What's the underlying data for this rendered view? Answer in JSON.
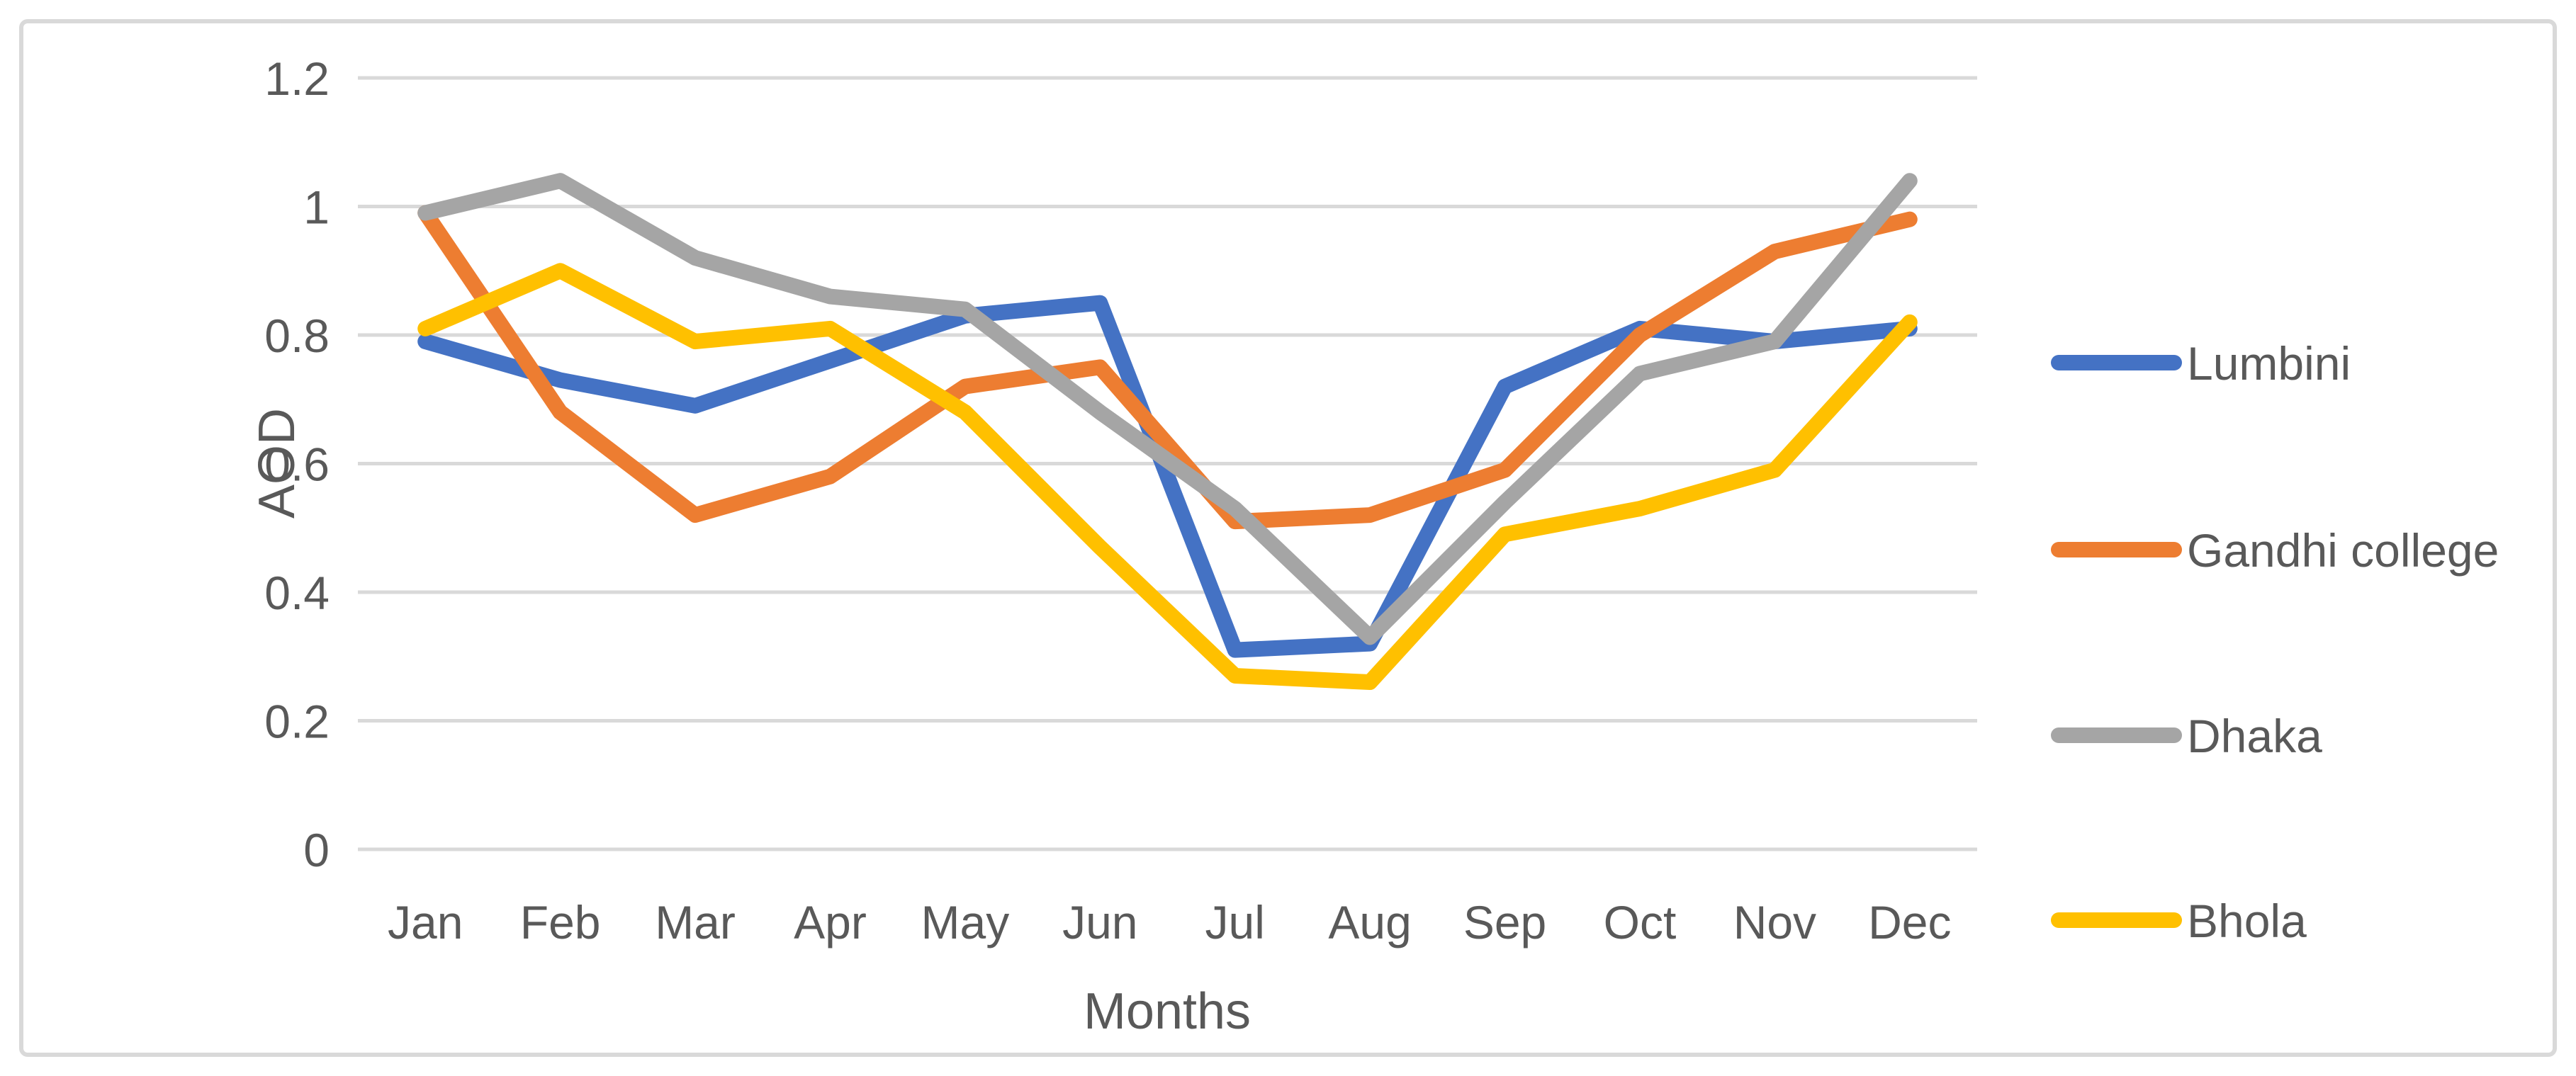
{
  "figure": {
    "background_color": "#FFFFFF",
    "border_color": "#D9D9D9"
  },
  "chart_data": {
    "type": "line",
    "title": "",
    "xlabel": "Months",
    "ylabel": "AOD",
    "categories": [
      "Jan",
      "Feb",
      "Mar",
      "Apr",
      "May",
      "Jun",
      "Jul",
      "Aug",
      "Sep",
      "Oct",
      "Nov",
      "Dec"
    ],
    "series": [
      {
        "name": "Lumbini",
        "color": "#4472C4",
        "values": [
          0.79,
          0.73,
          0.69,
          0.76,
          0.83,
          0.85,
          0.31,
          0.32,
          0.72,
          0.81,
          0.79,
          0.81
        ]
      },
      {
        "name": "Gandhi college",
        "color": "#ED7D31",
        "values": [
          0.99,
          0.68,
          0.52,
          0.58,
          0.72,
          0.75,
          0.51,
          0.52,
          0.59,
          0.8,
          0.93,
          0.98
        ]
      },
      {
        "name": "Dhaka",
        "color": "#A5A5A5",
        "values": [
          0.99,
          1.04,
          0.92,
          0.86,
          0.84,
          0.68,
          0.53,
          0.33,
          0.54,
          0.74,
          0.79,
          1.04
        ]
      },
      {
        "name": "Bhola",
        "color": "#FFC000",
        "values": [
          0.81,
          0.9,
          0.79,
          0.81,
          0.68,
          0.47,
          0.27,
          0.26,
          0.49,
          0.53,
          0.59,
          0.82
        ]
      }
    ],
    "ylim": [
      0,
      1.2
    ],
    "ytick_labels": [
      "0",
      "0.2",
      "0.4",
      "0.6",
      "0.8",
      "1",
      "1.2"
    ],
    "grid": "horizontal",
    "gridline_color": "#D9D9D9",
    "text_color": "#595959",
    "legend_position": "right"
  }
}
